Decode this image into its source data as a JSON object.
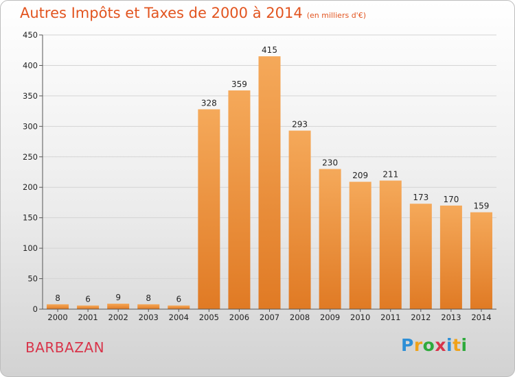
{
  "header": {
    "title": "Autres Impôts et Taxes de 2000 à 2014",
    "unit": "(en milliers d'€)"
  },
  "commune": "BARBAZAN",
  "logo": {
    "text": "Proxiti",
    "letters": [
      {
        "char": "P",
        "color": "#2e8fd6"
      },
      {
        "char": "r",
        "color": "#f0a21a"
      },
      {
        "char": "o",
        "color": "#2eaa3c"
      },
      {
        "char": "x",
        "color": "#d8344a"
      },
      {
        "char": "i",
        "color": "#2e8fd6"
      },
      {
        "char": "t",
        "color": "#f0a21a"
      },
      {
        "char": "i",
        "color": "#2eaa3c"
      }
    ]
  },
  "colors": {
    "title": "#e2541f",
    "commune": "#d8344a",
    "bar_light": "#f5a95a",
    "bar_dark": "#e07a24"
  },
  "chart_data": {
    "type": "bar",
    "categories": [
      "2000",
      "2001",
      "2002",
      "2003",
      "2004",
      "2005",
      "2006",
      "2007",
      "2008",
      "2009",
      "2010",
      "2011",
      "2012",
      "2013",
      "2014"
    ],
    "values": [
      8,
      6,
      9,
      8,
      6,
      328,
      359,
      415,
      293,
      230,
      209,
      211,
      173,
      170,
      159
    ],
    "title": "Autres Impôts et Taxes de 2000 à 2014",
    "subtitle": "(en milliers d'€)",
    "ylim": [
      0,
      450
    ],
    "yticks": [
      0,
      50,
      100,
      150,
      200,
      250,
      300,
      350,
      400,
      450
    ],
    "grid": true,
    "data_labels": true
  }
}
